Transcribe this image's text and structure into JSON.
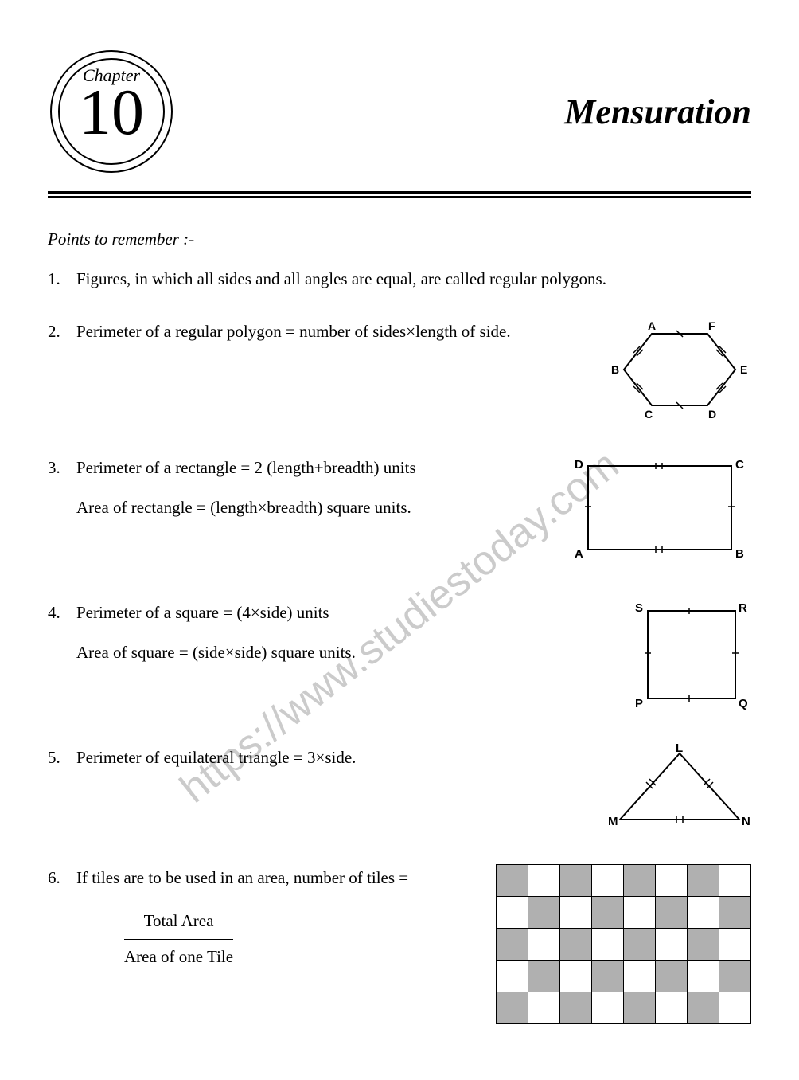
{
  "chapter": {
    "label": "Chapter",
    "number": "10",
    "title": "Mensuration"
  },
  "sectionHeading": "Points to remember :-",
  "points": {
    "p1": {
      "num": "1.",
      "text": "Figures, in which all sides and all angles are equal, are called regular polygons."
    },
    "p2": {
      "num": "2.",
      "text": "Perimeter of a regular polygon = number of sides×length of side."
    },
    "p3": {
      "num": "3.",
      "line1": "Perimeter of a rectangle = 2 (length+breadth) units",
      "line2": "Area of rectangle = (length×breadth) square units."
    },
    "p4": {
      "num": "4.",
      "line1": "Perimeter of a square = (4×side) units",
      "line2": "Area of square = (side×side) square units."
    },
    "p5": {
      "num": "5.",
      "text": "Perimeter of equilateral triangle = 3×side."
    },
    "p6": {
      "num": "6.",
      "text": "If tiles are to be used in an area, number of tiles =",
      "fracTop": "Total Area",
      "fracBot": "Area of one Tile"
    }
  },
  "hexagon": {
    "A": "A",
    "B": "B",
    "C": "C",
    "D": "D",
    "E": "E",
    "F": "F"
  },
  "rectangle": {
    "A": "A",
    "B": "B",
    "C": "C",
    "D": "D"
  },
  "square": {
    "P": "P",
    "Q": "Q",
    "R": "R",
    "S": "S"
  },
  "triangle": {
    "L": "L",
    "M": "M",
    "N": "N"
  },
  "tileGrid": {
    "rows": 5,
    "cols": 8,
    "gridColor": "#000000",
    "fillColor": "#b0b0b0",
    "pattern": [
      [
        1,
        0,
        1,
        0,
        1,
        0,
        1,
        0
      ],
      [
        0,
        1,
        0,
        1,
        0,
        1,
        0,
        1
      ],
      [
        1,
        0,
        1,
        0,
        1,
        0,
        1,
        0
      ],
      [
        0,
        1,
        0,
        1,
        0,
        1,
        0,
        1
      ],
      [
        1,
        0,
        1,
        0,
        1,
        0,
        1,
        0
      ]
    ]
  },
  "watermark": "https://www.studiestoday.com",
  "colors": {
    "text": "#000000",
    "background": "#ffffff",
    "tileFill": "#b0b0b0",
    "watermark": "rgba(140,140,140,0.45)"
  },
  "typography": {
    "body_fontsize": 21,
    "title_fontsize": 44,
    "chapter_num_fontsize": 82
  }
}
